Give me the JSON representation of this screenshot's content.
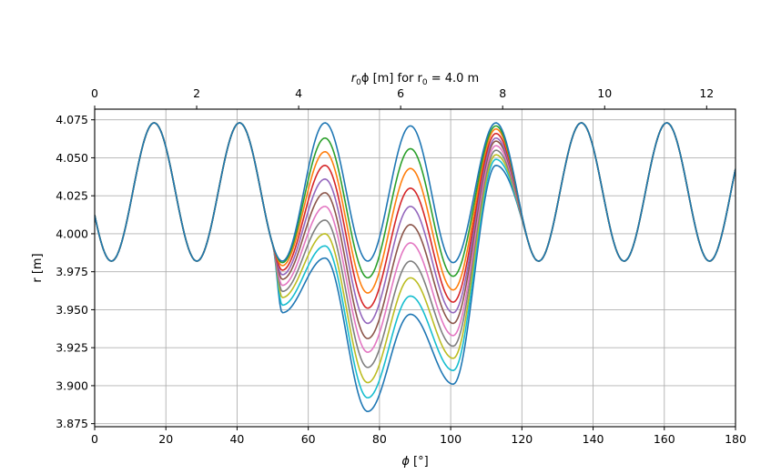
{
  "chart_data": {
    "type": "line",
    "xlabel_symbol": "ϕ",
    "xlabel_unit": "[°]",
    "ylabel": "r [m]",
    "top_xlabel_prefix": "r",
    "top_xlabel_sub": "0",
    "top_xlabel_mid": "ϕ [m] for r",
    "top_xlabel_sub2": "0",
    "top_xlabel_suffix": " = 4.0 m",
    "xlim": [
      0,
      180
    ],
    "ylim": [
      3.873,
      4.082
    ],
    "top_xlim": [
      0,
      12.566
    ],
    "x_ticks": [
      "0",
      "20",
      "40",
      "60",
      "80",
      "100",
      "120",
      "140",
      "160",
      "180"
    ],
    "y_ticks": [
      "3.875",
      "3.900",
      "3.925",
      "3.950",
      "3.975",
      "4.000",
      "4.025",
      "4.050",
      "4.075"
    ],
    "top_ticks": [
      "0",
      "2",
      "4",
      "6",
      "8",
      "10",
      "12"
    ],
    "grid": true,
    "legend": "none",
    "baseline": {
      "period_deg": 24,
      "first_peak_deg": 16.7,
      "max": 4.073,
      "min": 3.982
    },
    "perturbed_region_deg": [
      50,
      122
    ],
    "series": [
      {
        "color": "#1f77b4",
        "peak_values": [
          3.984,
          3.947,
          4.045
        ],
        "valley_values": [
          3.948,
          3.883,
          3.901
        ]
      },
      {
        "color": "#17becf",
        "peak_values": [
          3.992,
          3.959,
          4.049
        ],
        "valley_values": [
          3.953,
          3.892,
          3.91
        ]
      },
      {
        "color": "#bcbd22",
        "peak_values": [
          4.0,
          3.971,
          4.052
        ],
        "valley_values": [
          3.958,
          3.902,
          3.918
        ]
      },
      {
        "color": "#7f7f7f",
        "peak_values": [
          4.009,
          3.982,
          4.055
        ],
        "valley_values": [
          3.962,
          3.912,
          3.926
        ]
      },
      {
        "color": "#e377c2",
        "peak_values": [
          4.018,
          3.994,
          4.058
        ],
        "valley_values": [
          3.966,
          3.922,
          3.933
        ]
      },
      {
        "color": "#8c564b",
        "peak_values": [
          4.027,
          4.006,
          4.061
        ],
        "valley_values": [
          3.97,
          3.931,
          3.941
        ]
      },
      {
        "color": "#9467bd",
        "peak_values": [
          4.036,
          4.018,
          4.063
        ],
        "valley_values": [
          3.973,
          3.941,
          3.948
        ]
      },
      {
        "color": "#d62728",
        "peak_values": [
          4.045,
          4.03,
          4.066
        ],
        "valley_values": [
          3.976,
          3.951,
          3.955
        ]
      },
      {
        "color": "#ff7f0e",
        "peak_values": [
          4.054,
          4.043,
          4.069
        ],
        "valley_values": [
          3.979,
          3.961,
          3.963
        ]
      },
      {
        "color": "#2ca02c",
        "peak_values": [
          4.063,
          4.056,
          4.071
        ],
        "valley_values": [
          3.981,
          3.971,
          3.972
        ]
      },
      {
        "color": "#1f77b4",
        "peak_values": [
          4.073,
          4.071,
          4.073
        ],
        "valley_values": [
          3.982,
          3.982,
          3.981
        ]
      }
    ]
  }
}
